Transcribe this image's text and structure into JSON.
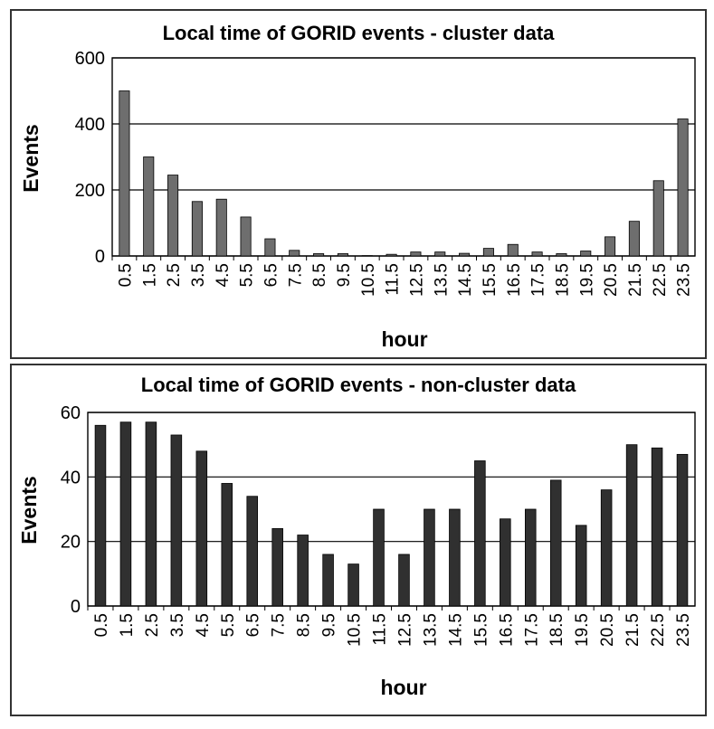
{
  "chart_data": [
    {
      "type": "bar",
      "title": "Local time of GORID events - cluster data",
      "xlabel": "hour",
      "ylabel": "Events",
      "ylim": [
        0,
        600
      ],
      "yticks": [
        "0",
        "200",
        "400",
        "600"
      ],
      "grid": "horizontal",
      "bar_color": "#6e6e6e",
      "categories": [
        "0.5",
        "1.5",
        "2.5",
        "3.5",
        "4.5",
        "5.5",
        "6.5",
        "7.5",
        "8.5",
        "9.5",
        "10.5",
        "11.5",
        "12.5",
        "13.5",
        "14.5",
        "15.5",
        "16.5",
        "17.5",
        "18.5",
        "19.5",
        "20.5",
        "21.5",
        "22.5",
        "23.5"
      ],
      "values": [
        500,
        300,
        245,
        165,
        172,
        118,
        52,
        17,
        7,
        7,
        1,
        5,
        12,
        12,
        8,
        23,
        35,
        12,
        7,
        15,
        58,
        105,
        228,
        415
      ]
    },
    {
      "type": "bar",
      "title": "Local time of GORID events - non-cluster data",
      "xlabel": "hour",
      "ylabel": "Events",
      "ylim": [
        0,
        60
      ],
      "yticks": [
        "0",
        "20",
        "40",
        "60"
      ],
      "grid": "horizontal",
      "bar_color": "#303030",
      "categories": [
        "0.5",
        "1.5",
        "2.5",
        "3.5",
        "4.5",
        "5.5",
        "6.5",
        "7.5",
        "8.5",
        "9.5",
        "10.5",
        "11.5",
        "12.5",
        "13.5",
        "14.5",
        "15.5",
        "16.5",
        "17.5",
        "18.5",
        "19.5",
        "20.5",
        "21.5",
        "22.5",
        "23.5"
      ],
      "values": [
        56,
        57,
        57,
        53,
        48,
        38,
        34,
        24,
        22,
        16,
        13,
        30,
        16,
        30,
        30,
        45,
        27,
        30,
        39,
        25,
        36,
        50,
        49,
        47
      ]
    }
  ]
}
